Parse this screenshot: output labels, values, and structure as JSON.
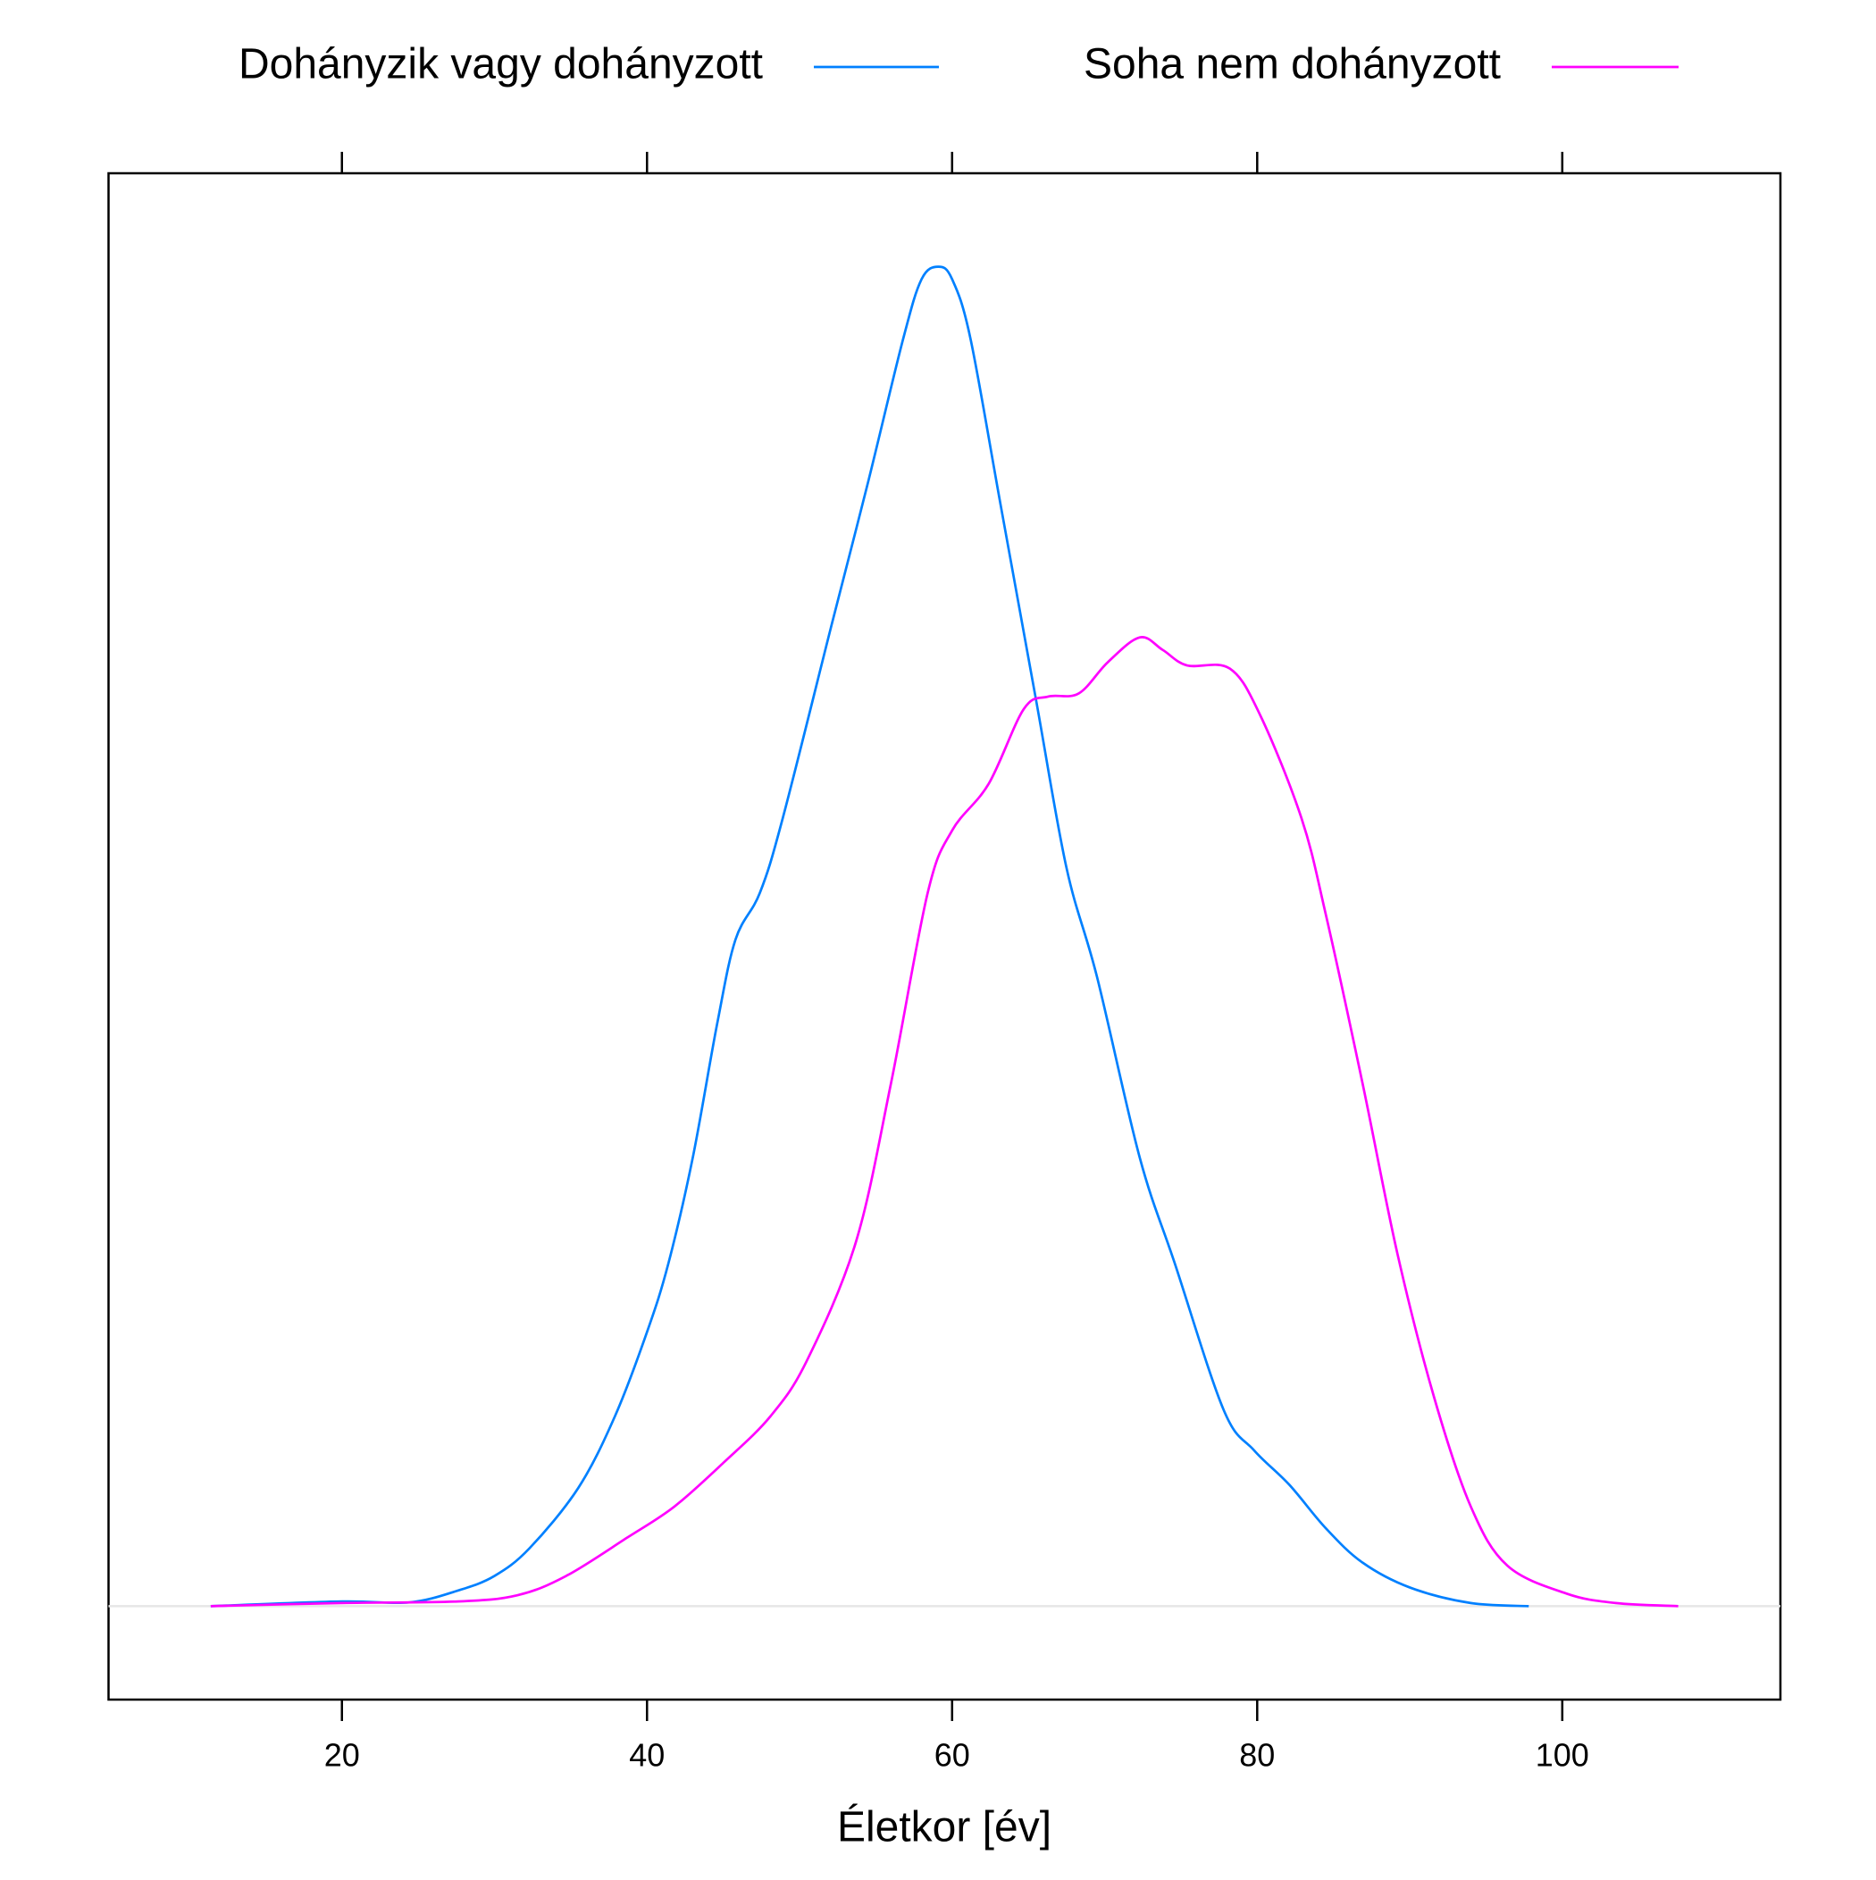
{
  "chart_data": {
    "type": "line",
    "x_label": "Életkor [év]",
    "xlim": [
      4.7,
      114.3
    ],
    "xticks": [
      20,
      40,
      60,
      80,
      100
    ],
    "ylim": [
      -0.003,
      0.046
    ],
    "legend": "top",
    "series": [
      {
        "name": "Dohányzik vagy dohányzott",
        "color": "#0080ff",
        "x": [
          11.4,
          20,
          24.4,
          27.6,
          30,
          32.3,
          35.5,
          37.9,
          40,
          41.4,
          43,
          44.6,
          45.8,
          47.4,
          48.9,
          52.1,
          54.5,
          56.8,
          58,
          59.1,
          60,
          61.2,
          63.2,
          65.5,
          67.5,
          69.5,
          72.3,
          74.6,
          77.8,
          79.8,
          82.1,
          84.5,
          86.9,
          90,
          94,
          97.8
        ],
        "values": [
          0,
          0.00015,
          0.00012,
          0.0005,
          0.00097,
          0.00186,
          0.0038,
          0.0061,
          0.0088,
          0.011,
          0.0144,
          0.0187,
          0.0214,
          0.0229,
          0.0253,
          0.0315,
          0.0361,
          0.0407,
          0.0426,
          0.043,
          0.0426,
          0.0407,
          0.0353,
          0.0291,
          0.0237,
          0.0202,
          0.0144,
          0.011,
          0.0063,
          0.005,
          0.0039,
          0.0025,
          0.0014,
          0.0006,
          0.0001,
          0
        ]
      },
      {
        "name": "Soha nem dohányzott",
        "color": "#ff00ff",
        "x": [
          11.4,
          20,
          27.6,
          31.5,
          34.7,
          38.7,
          41.8,
          45,
          48.1,
          50.5,
          53.7,
          56,
          58.4,
          60,
          62.4,
          64.7,
          66.3,
          68.3,
          70.2,
          72.3,
          73.8,
          75.4,
          78.2,
          80.2,
          82.9,
          84.5,
          86.9,
          89.2,
          91.6,
          94,
          96.4,
          100.3,
          103.5,
          107.6
        ],
        "values": [
          0,
          0.0001,
          0.00015,
          0.00035,
          0.00097,
          0.0022,
          0.0032,
          0.0046,
          0.0061,
          0.0079,
          0.0117,
          0.0168,
          0.0229,
          0.0249,
          0.0264,
          0.0288,
          0.0292,
          0.0293,
          0.0303,
          0.0311,
          0.0307,
          0.0302,
          0.0301,
          0.0286,
          0.0253,
          0.0222,
          0.0168,
          0.0113,
          0.0067,
          0.0032,
          0.0013,
          0.0004,
          0.0001,
          0
        ]
      }
    ]
  }
}
